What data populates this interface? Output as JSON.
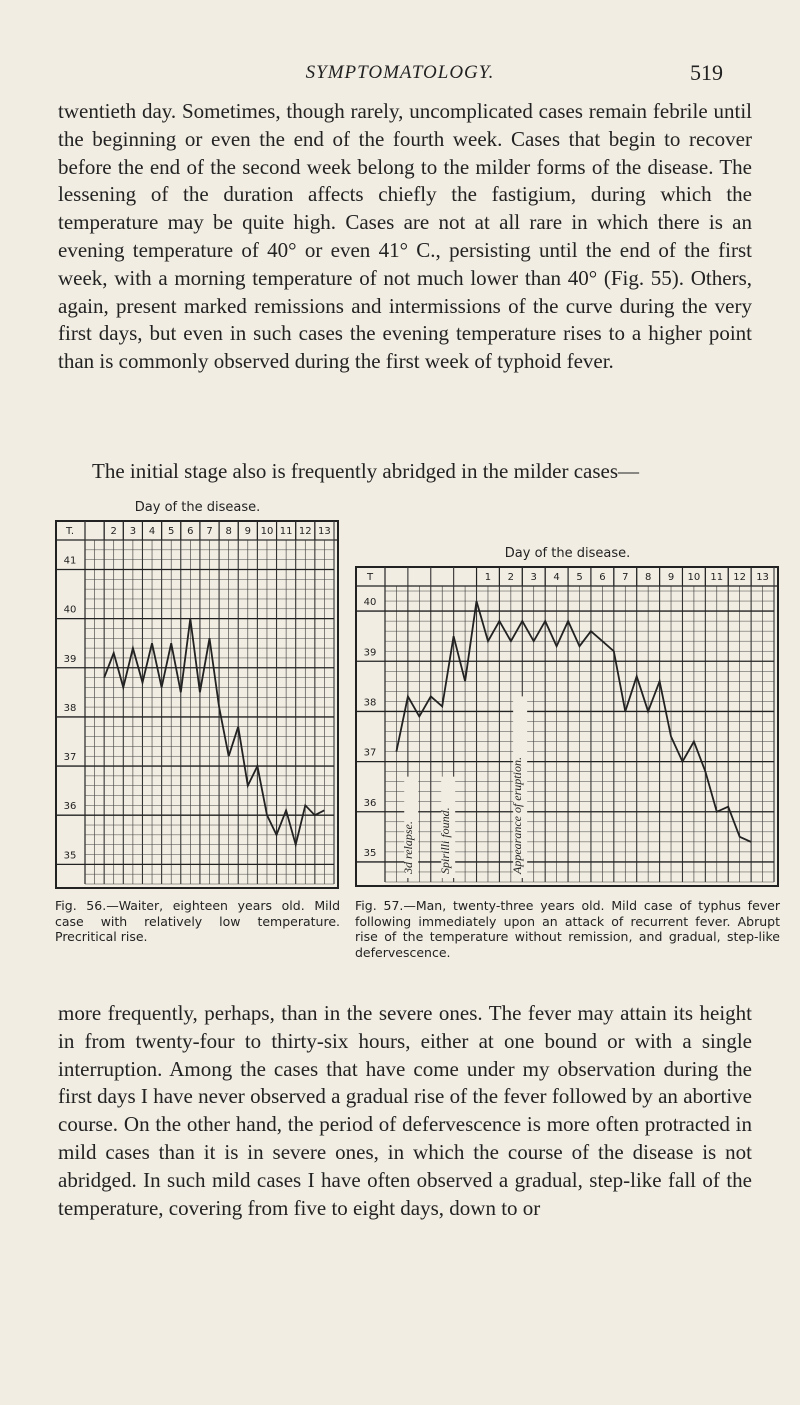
{
  "header": {
    "running_title": "SYMPTOMATOLOGY.",
    "page_number": "519"
  },
  "paragraphs": [
    "twentieth day. Sometimes, though rarely, uncomplicated cases remain febrile until the beginning or even the end of the fourth week. Cases that begin to recover before the end of the second week belong to the milder forms of the disease. The lessening of the duration affects chiefly the fastigium, during which the temperature may be quite high. Cases are not at all rare in which there is an evening temperature of 40° or even 41° C., persisting until the end of the first week, with a morning temperature of not much lower than 40° (Fig. 55). Others, again, present marked remissions and intermissions of the curve during the very first days, but even in such cases the evening temperature rises to a higher point than is commonly observed during the first week of typhoid fever.",
    "The initial stage also is frequently abridged in the milder cases—",
    "more frequently, perhaps, than in the severe ones. The fever may attain its height in from twenty-four to thirty-six hours, either at one bound or with a single interruption. Among the cases that have come under my observation during the first days I have never observed a gradual rise of the fever followed by an abortive course. On the other hand, the period of defervescence is more often protracted in mild cases than it is in severe ones, in which the course of the disease is not abridged. In such mild cases I have often observed a gradual, step-like fall of the temperature, covering from five to eight days, down to or"
  ],
  "figures": [
    {
      "chart_data": {
        "type": "line",
        "title": "Day of the disease.",
        "y_header": "T.",
        "xlim": [
          1,
          14
        ],
        "xticks": [
          2,
          3,
          4,
          5,
          6,
          7,
          8,
          9,
          10,
          11,
          12,
          13
        ],
        "ylim": [
          34.6,
          41.6
        ],
        "yticks": [
          35,
          36,
          37,
          38,
          39,
          40,
          41
        ],
        "grid": true,
        "series": [
          {
            "color": "#222222",
            "x": [
              2,
              2.5,
              3,
              3.5,
              4,
              4.5,
              5,
              5.5,
              6,
              6.5,
              7,
              7.5,
              8,
              8.5,
              9,
              9.5,
              10,
              10.5,
              11,
              11.5,
              12,
              12.5,
              13,
              13.5
            ],
            "values": [
              38.8,
              39.3,
              38.6,
              39.4,
              38.7,
              39.5,
              38.6,
              39.5,
              38.5,
              40.0,
              38.5,
              39.6,
              38.2,
              37.2,
              37.8,
              36.6,
              37.0,
              36.0,
              35.6,
              36.1,
              35.4,
              36.2,
              36.0,
              36.1
            ]
          }
        ],
        "annotations": []
      },
      "caption": "Fig. 56.—Waiter, eighteen years old. Mild case with relatively low temperature. Precritical rise."
    },
    {
      "chart_data": {
        "type": "line",
        "title": "Day of the disease.",
        "y_header": "T",
        "xlim": [
          -3,
          14
        ],
        "xticks": [
          1,
          2,
          3,
          4,
          5,
          6,
          7,
          8,
          9,
          10,
          11,
          12,
          13
        ],
        "ylim": [
          34.6,
          40.5
        ],
        "yticks": [
          35,
          36,
          37,
          38,
          39,
          40
        ],
        "grid": true,
        "series": [
          {
            "color": "#222222",
            "x": [
              -2.5,
              -2,
              -1.5,
              -1,
              -0.5,
              0,
              0.5,
              1,
              1.5,
              2,
              2.5,
              3,
              3.5,
              4,
              4.5,
              5,
              5.5,
              6,
              6.5,
              7,
              7.5,
              8,
              8.5,
              9,
              9.5,
              10,
              10.5,
              11,
              11.5,
              12,
              12.5,
              13
            ],
            "values": [
              37.2,
              38.3,
              37.9,
              38.3,
              38.1,
              39.5,
              38.6,
              40.2,
              39.4,
              39.8,
              39.4,
              39.8,
              39.4,
              39.8,
              39.3,
              39.8,
              39.3,
              39.6,
              39.4,
              39.2,
              38.0,
              38.7,
              38.0,
              38.6,
              37.5,
              37.0,
              37.4,
              36.8,
              36.0,
              36.1,
              35.5,
              35.4
            ]
          }
        ],
        "annotations": [
          "3d relapse.",
          "Spirilli found.",
          "Appearance of eruption."
        ]
      },
      "caption": "Fig. 57.—Man, twenty-three years old. Mild case of typhus fever following immediately upon an attack of recurrent fever. Abrupt rise of the temperature without remission, and gradual, step-like defervescence."
    }
  ]
}
